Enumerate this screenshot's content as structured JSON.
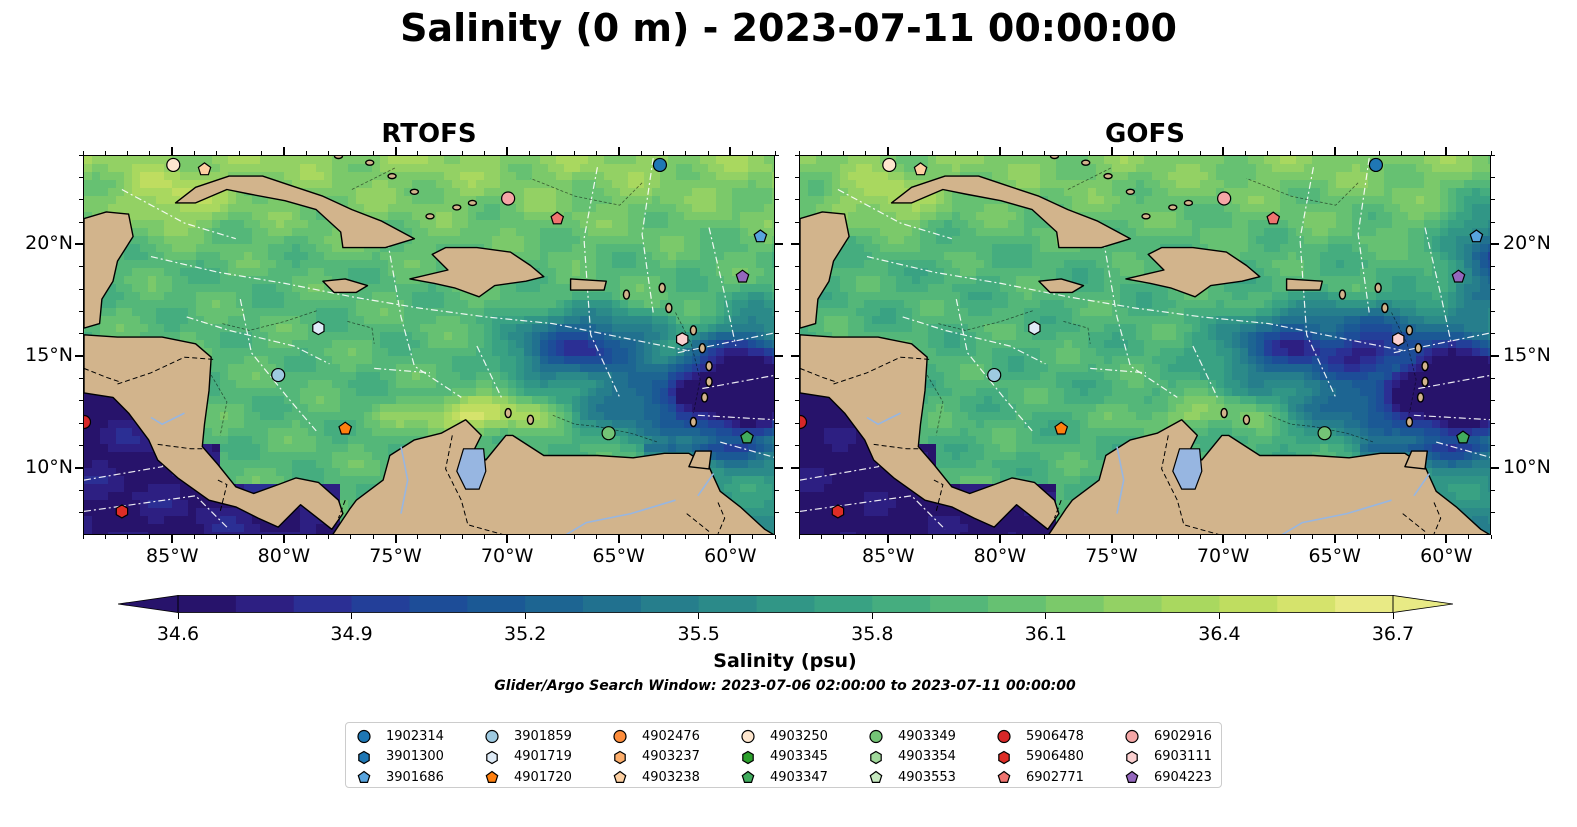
{
  "title": "Salinity (0 m) - 2023-07-11 00:00:00",
  "panels": [
    {
      "name": "RTOFS",
      "variant": "rtofs"
    },
    {
      "name": "GOFS",
      "variant": "gofs"
    }
  ],
  "map_extent": {
    "lon_min": -89,
    "lon_max": -58,
    "lat_min": 7,
    "lat_max": 24
  },
  "x_ticks": [
    "85°W",
    "80°W",
    "75°W",
    "70°W",
    "65°W",
    "60°W"
  ],
  "y_ticks": [
    "20°N",
    "15°N",
    "10°N"
  ],
  "colorbar": {
    "label": "Salinity (psu)",
    "min": 34.6,
    "max": 36.7,
    "ticks": [
      "34.6",
      "34.9",
      "35.2",
      "35.5",
      "35.8",
      "36.1",
      "36.4",
      "36.7"
    ],
    "colors": [
      "#27136b",
      "#2d1f82",
      "#2b2f94",
      "#233f99",
      "#1d4d98",
      "#1b5995",
      "#1d6592",
      "#21718f",
      "#267e8c",
      "#2b8a89",
      "#319686",
      "#39a283",
      "#45ad7f",
      "#54b779",
      "#66c172",
      "#7bc96a",
      "#93d164",
      "#a9d85f",
      "#bfdd60",
      "#d5e36c",
      "#e8ea85"
    ],
    "land_color": "#d2b48c",
    "lake_color": "#97b6e1"
  },
  "search_window": "Glider/Argo Search Window: 2023-07-06 02:00:00 to 2023-07-11 00:00:00",
  "legend": [
    {
      "id": "1902314",
      "marker": "circle",
      "color": "#1f77b4"
    },
    {
      "id": "3901300",
      "marker": "hexagon",
      "color": "#1f77b4"
    },
    {
      "id": "3901686",
      "marker": "pentagon",
      "color": "#58a4de"
    },
    {
      "id": "3901859",
      "marker": "circle",
      "color": "#9ecae1"
    },
    {
      "id": "4901719",
      "marker": "hexagon",
      "color": "#deebf7"
    },
    {
      "id": "4901720",
      "marker": "pentagon",
      "color": "#ff7f0e"
    },
    {
      "id": "4902476",
      "marker": "circle",
      "color": "#fd8d3c"
    },
    {
      "id": "4903237",
      "marker": "hexagon",
      "color": "#fdae6b"
    },
    {
      "id": "4903238",
      "marker": "pentagon",
      "color": "#fdd0a2"
    },
    {
      "id": "4903250",
      "marker": "circle",
      "color": "#fee6ce"
    },
    {
      "id": "4903345",
      "marker": "hexagon",
      "color": "#2ca02c"
    },
    {
      "id": "4903347",
      "marker": "pentagon",
      "color": "#41ab5d"
    },
    {
      "id": "4903349",
      "marker": "circle",
      "color": "#74c476"
    },
    {
      "id": "4903354",
      "marker": "hexagon",
      "color": "#a1d99b"
    },
    {
      "id": "4903553",
      "marker": "pentagon",
      "color": "#c7e9c0"
    },
    {
      "id": "5906478",
      "marker": "circle",
      "color": "#d62728"
    },
    {
      "id": "5906480",
      "marker": "hexagon",
      "color": "#de2d26"
    },
    {
      "id": "6902771",
      "marker": "pentagon",
      "color": "#f07470"
    },
    {
      "id": "6902916",
      "marker": "circle",
      "color": "#f4a6a6"
    },
    {
      "id": "6903111",
      "marker": "hexagon",
      "color": "#fbd0d0"
    },
    {
      "id": "6904223",
      "marker": "pentagon",
      "color": "#9467bd"
    }
  ],
  "markers": [
    {
      "id": "4903250",
      "lon": -85.0,
      "lat": 23.6
    },
    {
      "id": "4903238",
      "lon": -83.6,
      "lat": 23.4
    },
    {
      "id": "1902314",
      "lon": -63.2,
      "lat": 23.6
    },
    {
      "id": "6902916",
      "lon": -70.0,
      "lat": 22.1
    },
    {
      "id": "6902771",
      "lon": -67.8,
      "lat": 21.2
    },
    {
      "id": "3901686",
      "lon": -58.7,
      "lat": 20.4
    },
    {
      "id": "6904223",
      "lon": -59.5,
      "lat": 18.6
    },
    {
      "id": "4901719",
      "lon": -78.5,
      "lat": 16.3
    },
    {
      "id": "6903111",
      "lon": -62.2,
      "lat": 15.8
    },
    {
      "id": "3901859",
      "lon": -80.3,
      "lat": 14.2
    },
    {
      "id": "4901720",
      "lon": -77.3,
      "lat": 11.8
    },
    {
      "id": "4903349",
      "lon": -65.5,
      "lat": 11.6
    },
    {
      "id": "4903347",
      "lon": -59.3,
      "lat": 11.4
    },
    {
      "id": "5906478",
      "lon": -89.0,
      "lat": 12.1
    },
    {
      "id": "5906480",
      "lon": -87.3,
      "lat": 8.1
    }
  ]
}
